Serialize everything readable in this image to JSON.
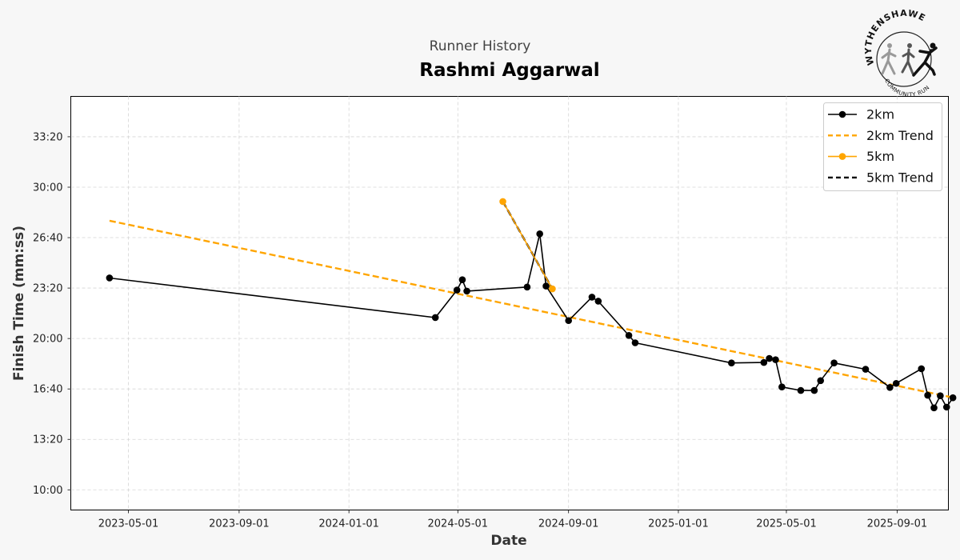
{
  "header": {
    "subtitle": "Runner History",
    "title": "Rashmi Aggarwal"
  },
  "logo": {
    "text_top": "WYTHENSHAWE",
    "text_bottom": "COMMUNITY RUN"
  },
  "chart_data": {
    "type": "line",
    "xlabel": "Date",
    "ylabel": "Finish Time (mm:ss)",
    "x_tick_labels": [
      "2023-05-01",
      "2023-09-01",
      "2024-01-01",
      "2024-05-01",
      "2024-09-01",
      "2025-01-01",
      "2025-05-01",
      "2025-09-01"
    ],
    "y_tick_labels": [
      "10:00",
      "13:20",
      "16:40",
      "20:00",
      "23:20",
      "26:40",
      "30:00",
      "33:20"
    ],
    "y_unit": "seconds",
    "ylim": [
      520,
      2160
    ],
    "xlim": [
      "2023-02-26",
      "2025-10-28"
    ],
    "grid": true,
    "legend_position": "top-right",
    "colors": {
      "2km": "#000000",
      "5km": "#FFA500"
    },
    "series": [
      {
        "name": "2km",
        "color": "#000000",
        "style": "line-marker",
        "points": [
          {
            "x": "2023-04-10",
            "y": 1440
          },
          {
            "x": "2024-04-06",
            "y": 1283
          },
          {
            "x": "2024-04-30",
            "y": 1392
          },
          {
            "x": "2024-05-06",
            "y": 1433
          },
          {
            "x": "2024-05-11",
            "y": 1388
          },
          {
            "x": "2024-07-17",
            "y": 1404
          },
          {
            "x": "2024-07-31",
            "y": 1615
          },
          {
            "x": "2024-08-07",
            "y": 1408
          },
          {
            "x": "2024-09-01",
            "y": 1271
          },
          {
            "x": "2024-09-27",
            "y": 1364
          },
          {
            "x": "2024-10-04",
            "y": 1348
          },
          {
            "x": "2024-11-07",
            "y": 1212
          },
          {
            "x": "2024-11-14",
            "y": 1183
          },
          {
            "x": "2025-03-01",
            "y": 1103
          },
          {
            "x": "2025-04-06",
            "y": 1105
          },
          {
            "x": "2025-04-12",
            "y": 1121
          },
          {
            "x": "2025-04-19",
            "y": 1116
          },
          {
            "x": "2025-04-26",
            "y": 1008
          },
          {
            "x": "2025-05-17",
            "y": 994
          },
          {
            "x": "2025-06-01",
            "y": 994
          },
          {
            "x": "2025-06-08",
            "y": 1033
          },
          {
            "x": "2025-06-23",
            "y": 1103
          },
          {
            "x": "2025-07-28",
            "y": 1078
          },
          {
            "x": "2025-08-24",
            "y": 1006
          },
          {
            "x": "2025-08-31",
            "y": 1022
          },
          {
            "x": "2025-09-28",
            "y": 1080
          },
          {
            "x": "2025-10-05",
            "y": 975
          },
          {
            "x": "2025-10-12",
            "y": 925
          },
          {
            "x": "2025-10-19",
            "y": 973
          },
          {
            "x": "2025-10-26",
            "y": 928
          },
          {
            "x": "2025-11-02",
            "y": 965
          }
        ]
      },
      {
        "name": "2km Trend",
        "color": "#FFA500",
        "style": "dashed",
        "points": [
          {
            "x": "2023-04-10",
            "y": 1667
          },
          {
            "x": "2025-11-02",
            "y": 966
          }
        ]
      },
      {
        "name": "5km",
        "color": "#FFA500",
        "style": "line-marker",
        "points": [
          {
            "x": "2024-06-20",
            "y": 1743
          },
          {
            "x": "2024-08-14",
            "y": 1397
          }
        ]
      },
      {
        "name": "5km Trend",
        "color": "#000000",
        "style": "dashed",
        "points": [
          {
            "x": "2024-06-20",
            "y": 1743
          },
          {
            "x": "2024-08-14",
            "y": 1397
          }
        ]
      }
    ]
  }
}
